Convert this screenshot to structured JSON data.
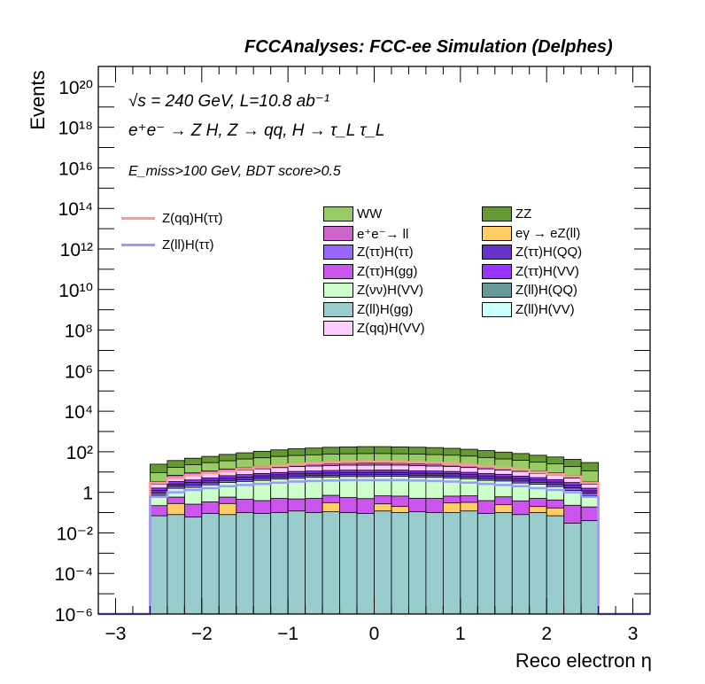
{
  "header": {
    "title": "FCCAnalyses: FCC-ee Simulation (Delphes)"
  },
  "annotations": {
    "energy_lumi": "√s = 240 GeV, L=10.8 ab⁻¹",
    "process": "e⁺e⁻ → Z H, Z → qq, H → τ_L τ_L",
    "selection": "E_miss>100 GeV, BDT score>0.5"
  },
  "chart_data": {
    "type": "bar",
    "stacked": true,
    "title": "FCCAnalyses: FCC-ee Simulation (Delphes)",
    "xlabel": "Reco electron η",
    "ylabel": "Events",
    "xlim": [
      -3.2,
      3.2
    ],
    "ylim": [
      1e-06,
      1e+21
    ],
    "yscale": "log",
    "grid": false,
    "legend_placement": "top",
    "x_ticks": [
      "−3",
      "−2",
      "−1",
      "0",
      "1",
      "2",
      "3"
    ],
    "y_ticks": [
      "10⁻⁶",
      "10⁻⁴",
      "10⁻²",
      "1",
      "10²",
      "10⁴",
      "10⁶",
      "10⁸",
      "10¹⁰",
      "10¹²",
      "10¹⁴",
      "10¹⁶",
      "10¹⁸",
      "10²⁰"
    ],
    "bin_edges": [
      -2.6,
      -2.4,
      -2.2,
      -2.0,
      -1.8,
      -1.6,
      -1.4,
      -1.2,
      -1.0,
      -0.8,
      -0.6,
      -0.4,
      -0.2,
      0.0,
      0.2,
      0.4,
      0.6,
      0.8,
      1.0,
      1.2,
      1.4,
      1.6,
      1.8,
      2.0,
      2.2,
      2.4,
      2.6
    ],
    "series": [
      {
        "name": "Z(ll)H(gg)",
        "color": "#99cccc",
        "values": [
          0.07,
          0.08,
          0.06,
          0.09,
          0.08,
          0.1,
          0.09,
          0.1,
          0.12,
          0.1,
          0.11,
          0.1,
          0.09,
          0.12,
          0.1,
          0.11,
          0.1,
          0.1,
          0.12,
          0.09,
          0.1,
          0.08,
          0.1,
          0.07,
          0.03,
          0.04
        ]
      },
      {
        "name": "eγ → eZ(ll)",
        "color": "#ffcc66",
        "values": [
          0,
          0.2,
          0,
          0,
          0.2,
          0,
          0,
          0,
          0,
          0,
          0.2,
          0,
          0,
          0.15,
          0.1,
          0,
          0,
          0.2,
          0.2,
          0,
          0.15,
          0,
          0.1,
          0.1,
          0,
          0
        ]
      },
      {
        "name": "Z(ττ)H(gg)",
        "color": "#cc55ee",
        "values": [
          0.15,
          0.3,
          0.2,
          0.25,
          0.3,
          0.35,
          0.3,
          0.4,
          0.35,
          0.4,
          0.4,
          0.45,
          0.4,
          0.4,
          0.45,
          0.4,
          0.4,
          0.35,
          0.35,
          0.3,
          0.35,
          0.3,
          0.3,
          0.25,
          0.2,
          0.15
        ]
      },
      {
        "name": "Z(νν)H(VV)",
        "color": "#ccffcc",
        "values": [
          0.5,
          1.0,
          1.5,
          2.0,
          2.5,
          3.0,
          3.5,
          4.0,
          4.5,
          5.0,
          5.0,
          5.5,
          5.5,
          5.5,
          5.5,
          5.0,
          5.0,
          4.5,
          4.0,
          3.5,
          3.0,
          2.5,
          2.0,
          1.5,
          1.0,
          0.5
        ]
      },
      {
        "name": "Z(ττ)H(ττ)",
        "color": "#9966ff",
        "values": [
          0.2,
          0.4,
          0.5,
          0.6,
          0.8,
          0.8,
          1.0,
          1.0,
          1.2,
          1.2,
          1.2,
          1.3,
          1.3,
          1.3,
          1.3,
          1.2,
          1.2,
          1.1,
          1.0,
          0.9,
          0.8,
          0.7,
          0.6,
          0.5,
          0.4,
          0.2
        ]
      },
      {
        "name": "Z(ττ)H(QQ)",
        "color": "#6633cc",
        "values": [
          0.3,
          0.6,
          0.8,
          1.0,
          1.2,
          1.4,
          1.6,
          1.8,
          2.0,
          2.0,
          2.2,
          2.2,
          2.2,
          2.2,
          2.2,
          2.2,
          2.0,
          2.0,
          1.8,
          1.6,
          1.4,
          1.2,
          1.0,
          0.8,
          0.6,
          0.3
        ]
      },
      {
        "name": "Z(ττ)H(VV)",
        "color": "#9933ff",
        "values": [
          0.4,
          0.8,
          1.0,
          1.2,
          1.5,
          1.8,
          2.0,
          2.2,
          2.5,
          2.5,
          2.8,
          2.8,
          2.8,
          2.8,
          2.8,
          2.6,
          2.5,
          2.4,
          2.2,
          2.0,
          1.8,
          1.5,
          1.2,
          1.0,
          0.8,
          0.4
        ]
      },
      {
        "name": "Z(qq)H(VV)",
        "color": "#ffccff",
        "values": [
          1.0,
          2.0,
          3.0,
          3.5,
          4.5,
          5.0,
          6.0,
          7.0,
          8.0,
          8.5,
          9.0,
          9.5,
          9.5,
          9.5,
          9.5,
          9.0,
          8.5,
          8.0,
          7.0,
          6.0,
          5.0,
          4.5,
          3.5,
          3.0,
          2.0,
          1.0
        ]
      },
      {
        "name": "e⁺e⁻→ ll",
        "color": "#cc66cc",
        "values": [
          0.8,
          1.5,
          2.0,
          2.5,
          3.0,
          3.5,
          4.0,
          4.5,
          5.0,
          5.0,
          5.5,
          5.5,
          5.5,
          5.5,
          5.5,
          5.5,
          5.0,
          5.0,
          4.5,
          4.0,
          3.5,
          3.0,
          2.5,
          2.0,
          1.5,
          0.8
        ]
      },
      {
        "name": "WW",
        "color": "#99cc66",
        "values": [
          6,
          10,
          14,
          18,
          22,
          28,
          32,
          38,
          42,
          46,
          50,
          52,
          54,
          54,
          52,
          50,
          48,
          44,
          40,
          34,
          28,
          24,
          20,
          16,
          12,
          8
        ]
      },
      {
        "name": "ZZ",
        "color": "#669933",
        "values": [
          15,
          20,
          25,
          30,
          38,
          45,
          55,
          65,
          75,
          82,
          90,
          95,
          98,
          98,
          95,
          92,
          88,
          80,
          72,
          62,
          52,
          44,
          36,
          30,
          24,
          18
        ]
      },
      {
        "name": "Z(ll)H(QQ)",
        "color": "#669999",
        "values": []
      },
      {
        "name": "Z(ll)H(VV)",
        "color": "#ccffff",
        "values": []
      }
    ],
    "signals": [
      {
        "name": "Z(qq)H(ττ)",
        "color": "#ff9999",
        "values": [
          3,
          5,
          7,
          9,
          11,
          14,
          17,
          20,
          24,
          27,
          30,
          31,
          32,
          32,
          31,
          30,
          28,
          25,
          22,
          19,
          16,
          13,
          10,
          8,
          6,
          3
        ]
      },
      {
        "name": "Z(ll)H(ττ)",
        "color": "#9999ff",
        "values": [
          0.6,
          1.0,
          1.3,
          1.6,
          2.0,
          2.3,
          2.6,
          3.0,
          3.4,
          3.6,
          3.8,
          4.0,
          4.0,
          4.0,
          4.0,
          3.8,
          3.6,
          3.4,
          3.0,
          2.6,
          2.3,
          2.0,
          1.6,
          1.3,
          1.0,
          0.6
        ]
      }
    ],
    "signal_underflow_value": 1e-06
  }
}
